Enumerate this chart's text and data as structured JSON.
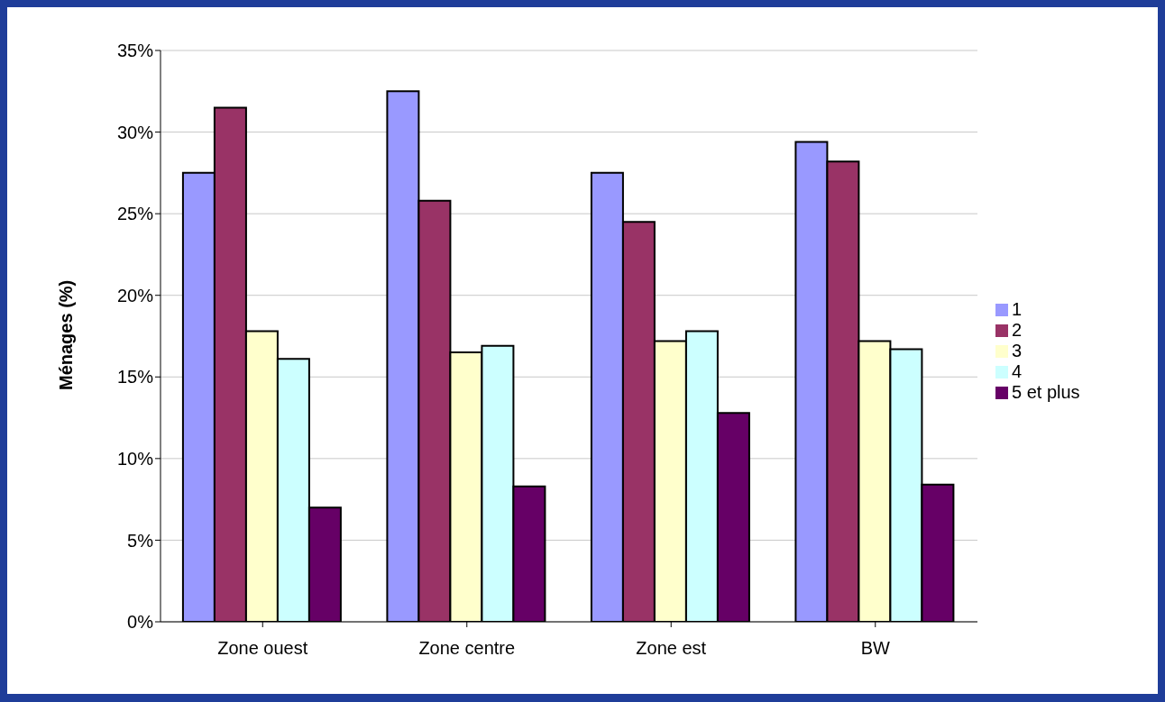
{
  "chart_data": {
    "type": "bar",
    "ylabel": "Ménages (%)",
    "categories": [
      "Zone ouest",
      "Zone centre",
      "Zone est",
      "BW"
    ],
    "series": [
      {
        "name": "1",
        "color": "#9999ff",
        "values": [
          27.5,
          32.5,
          27.5,
          29.4
        ]
      },
      {
        "name": "2",
        "color": "#993366",
        "values": [
          31.5,
          25.8,
          24.5,
          28.2
        ]
      },
      {
        "name": "3",
        "color": "#ffffcc",
        "values": [
          17.8,
          16.5,
          17.2,
          17.2
        ]
      },
      {
        "name": "4",
        "color": "#ccffff",
        "values": [
          16.1,
          16.9,
          17.8,
          16.7
        ]
      },
      {
        "name": "5 et plus",
        "color": "#660066",
        "values": [
          7.0,
          8.3,
          12.8,
          8.4
        ]
      }
    ],
    "ylim": [
      0,
      35
    ],
    "yticks": [
      {
        "value": 0,
        "label": "0%"
      },
      {
        "value": 5,
        "label": "5%"
      },
      {
        "value": 10,
        "label": "10%"
      },
      {
        "value": 15,
        "label": "15%"
      },
      {
        "value": 20,
        "label": "20%"
      },
      {
        "value": 25,
        "label": "25%"
      },
      {
        "value": 30,
        "label": "30%"
      },
      {
        "value": 35,
        "label": "35%"
      }
    ],
    "grid": "y",
    "legend": "right"
  }
}
